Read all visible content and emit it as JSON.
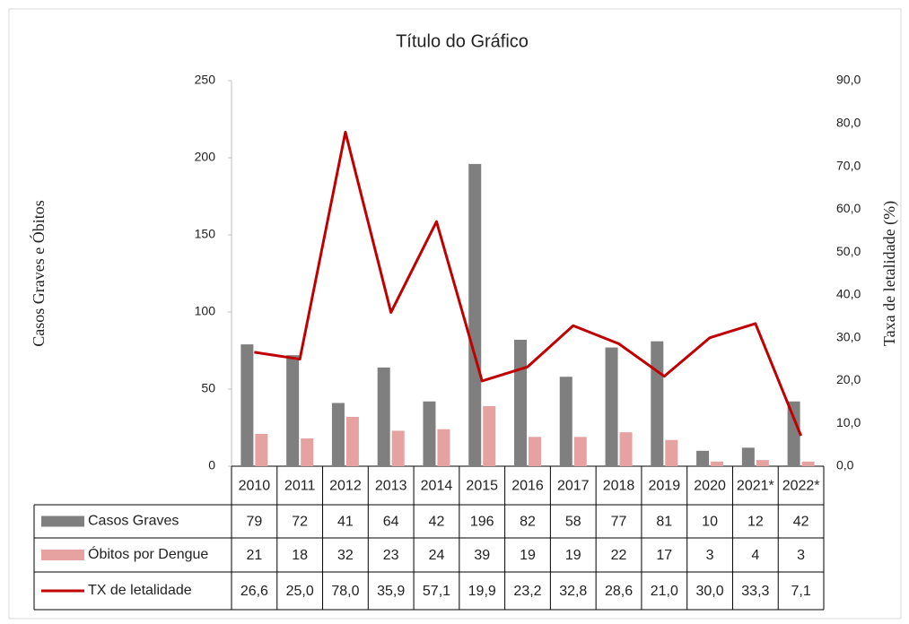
{
  "chart_data": {
    "type": "bar",
    "title": "Título do Gráfico",
    "y_label": "Casos  Graves e Óbitos",
    "y2_label": "Taxa de letalidade (%)",
    "categories": [
      "2010",
      "2011",
      "2012",
      "2013",
      "2014",
      "2015",
      "2016",
      "2017",
      "2018",
      "2019",
      "2020",
      "2021*",
      "2022*"
    ],
    "series": [
      {
        "name": "Casos Graves",
        "type": "bar",
        "color": "#7f7f7f",
        "values": [
          79,
          72,
          41,
          64,
          42,
          196,
          82,
          58,
          77,
          81,
          10,
          12,
          42
        ]
      },
      {
        "name": "Óbitos por Dengue",
        "type": "bar",
        "color": "#e6a1a1",
        "values": [
          21,
          18,
          32,
          23,
          24,
          39,
          19,
          19,
          22,
          17,
          3,
          4,
          3
        ]
      },
      {
        "name": "TX de letalidade",
        "type": "line",
        "axis": "y2",
        "color": "#c00000",
        "values": [
          26.6,
          25.0,
          78.0,
          35.9,
          57.1,
          19.9,
          23.2,
          32.8,
          28.6,
          21.0,
          30.0,
          33.3,
          7.1
        ],
        "value_labels": [
          "26,6",
          "25,0",
          "78,0",
          "35,9",
          "57,1",
          "19,9",
          "23,2",
          "32,8",
          "28,6",
          "21,0",
          "30,0",
          "33,3",
          "7,1"
        ]
      }
    ],
    "ylim": [
      0,
      250
    ],
    "yticks": [
      0,
      50,
      100,
      150,
      200,
      250
    ],
    "y2lim": [
      0,
      90
    ],
    "y2ticks": [
      {
        "value": 0,
        "label": "0,0"
      },
      {
        "value": 10,
        "label": "10,0"
      },
      {
        "value": 20,
        "label": "20,0"
      },
      {
        "value": 30,
        "label": "30,0"
      },
      {
        "value": 40,
        "label": "40,0"
      },
      {
        "value": 50,
        "label": "50,0"
      },
      {
        "value": 60,
        "label": "60,0"
      },
      {
        "value": 70,
        "label": "70,0"
      },
      {
        "value": 80,
        "label": "80,0"
      },
      {
        "value": 90,
        "label": "90,0"
      }
    ]
  }
}
